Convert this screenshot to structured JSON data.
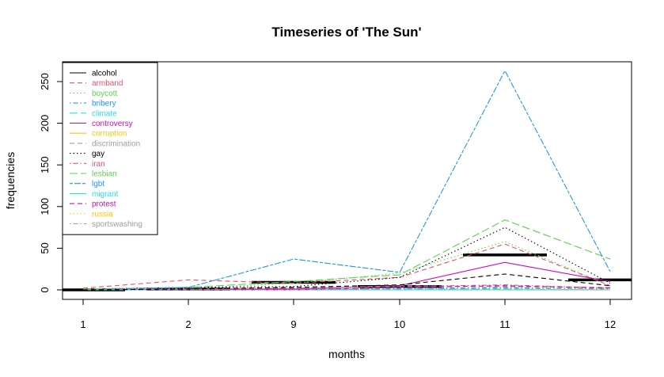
{
  "chart_data": {
    "type": "line",
    "title": "Timeseries of 'The Sun'",
    "xlabel": "months",
    "ylabel": "frequencies",
    "categories": [
      "1",
      "2",
      "9",
      "10",
      "11",
      "12"
    ],
    "ylim": [
      -10,
      275
    ],
    "yticks": [
      0,
      50,
      100,
      150,
      200,
      250
    ],
    "grid": false,
    "legend_position": "top-left",
    "series": [
      {
        "name": "alcohol",
        "color": "#000000",
        "dash": "solid",
        "values": [
          0,
          1,
          9,
          4,
          42,
          12
        ],
        "style": "mean-bar"
      },
      {
        "name": "armband",
        "color": "#DF536B",
        "dash": "dashed",
        "values": [
          2,
          12,
          8,
          15,
          55,
          5
        ]
      },
      {
        "name": "boycott",
        "color": "#61D04F",
        "dash": "dotted",
        "values": [
          1,
          2,
          8,
          20,
          58,
          5
        ]
      },
      {
        "name": "bribery",
        "color": "#2297E6",
        "dash": "dotdash",
        "values": [
          0,
          1,
          1,
          2,
          3,
          1
        ]
      },
      {
        "name": "climate",
        "color": "#28E2E5",
        "dash": "longdash",
        "values": [
          0,
          1,
          1,
          1,
          1,
          0
        ]
      },
      {
        "name": "controversy",
        "color": "#CD0BBC",
        "dash": "solid",
        "values": [
          0,
          1,
          1,
          5,
          33,
          10
        ]
      },
      {
        "name": "corruption",
        "color": "#F5C710",
        "dash": "solid",
        "values": [
          0,
          0,
          0,
          0,
          0,
          0
        ]
      },
      {
        "name": "discrimination",
        "color": "#9E9E9E",
        "dash": "dashed",
        "values": [
          0,
          1,
          2,
          5,
          4,
          3
        ]
      },
      {
        "name": "gay",
        "color": "#000000",
        "dash": "dotted",
        "values": [
          1,
          3,
          4,
          15,
          75,
          8
        ]
      },
      {
        "name": "iran",
        "color": "#DF536B",
        "dash": "dotdash",
        "values": [
          0,
          1,
          2,
          4,
          6,
          2
        ]
      },
      {
        "name": "lesbian",
        "color": "#61D04F",
        "dash": "longdash",
        "values": [
          1,
          3,
          10,
          18,
          84,
          37
        ]
      },
      {
        "name": "lgbt",
        "color": "#2297E6",
        "dash": "twodash",
        "values": [
          0,
          3,
          37,
          21,
          263,
          22
        ]
      },
      {
        "name": "migrant",
        "color": "#28E2E5",
        "dash": "solid",
        "values": [
          0,
          0,
          0,
          0,
          0,
          0
        ]
      },
      {
        "name": "protest",
        "color": "#CD0BBC",
        "dash": "dashed",
        "values": [
          0,
          0,
          0,
          3,
          5,
          2
        ]
      },
      {
        "name": "russia",
        "color": "#F5C710",
        "dash": "dotted",
        "values": [
          0,
          0,
          0,
          1,
          1,
          0
        ]
      },
      {
        "name": "sportswashing",
        "color": "#9E9E9E",
        "dash": "dotdash",
        "values": [
          0,
          0,
          0,
          1,
          2,
          1
        ]
      },
      {
        "name": "",
        "color": "#000000",
        "dash": "dashed",
        "values": [
          0,
          1,
          3,
          6,
          19,
          5
        ]
      }
    ]
  }
}
